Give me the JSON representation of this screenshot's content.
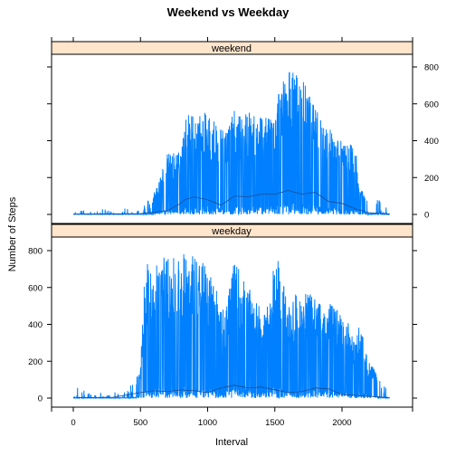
{
  "chart_data": {
    "type": "line",
    "title": "Weekend vs Weekday",
    "xlabel": "Interval",
    "ylabel": "Number of Steps",
    "xlim": [
      0,
      2355
    ],
    "ylim": [
      0,
      806
    ],
    "x_ticks": [
      0,
      500,
      1000,
      1500,
      2000
    ],
    "y_ticks": [
      0,
      200,
      400,
      600,
      800
    ],
    "colors": {
      "series": "#0080ff",
      "strip": "#ffe5cc"
    },
    "panels": [
      {
        "name": "weekend",
        "y_axis_side": "right",
        "series": {
          "peaks": [
            [
              0,
              0
            ],
            [
              30,
              50
            ],
            [
              100,
              10
            ],
            [
              200,
              30
            ],
            [
              300,
              20
            ],
            [
              400,
              45
            ],
            [
              500,
              30
            ],
            [
              530,
              60
            ],
            [
              600,
              120
            ],
            [
              640,
              200
            ],
            [
              700,
              330
            ],
            [
              800,
              350
            ],
            [
              830,
              545
            ],
            [
              900,
              555
            ],
            [
              930,
              545
            ],
            [
              1000,
              555
            ],
            [
              1030,
              540
            ],
            [
              1100,
              480
            ],
            [
              1130,
              460
            ],
            [
              1200,
              565
            ],
            [
              1230,
              540
            ],
            [
              1300,
              560
            ],
            [
              1330,
              545
            ],
            [
              1400,
              555
            ],
            [
              1430,
              520
            ],
            [
              1500,
              605
            ],
            [
              1530,
              700
            ],
            [
              1600,
              785
            ],
            [
              1630,
              790
            ],
            [
              1700,
              740
            ],
            [
              1730,
              705
            ],
            [
              1800,
              575
            ],
            [
              1830,
              560
            ],
            [
              1900,
              470
            ],
            [
              1930,
              455
            ],
            [
              2000,
              400
            ],
            [
              2030,
              380
            ],
            [
              2100,
              380
            ],
            [
              2130,
              150
            ],
            [
              2200,
              100
            ],
            [
              2300,
              75
            ],
            [
              2330,
              110
            ],
            [
              2355,
              30
            ]
          ],
          "mean": [
            [
              0,
              2
            ],
            [
              500,
              5
            ],
            [
              700,
              20
            ],
            [
              800,
              60
            ],
            [
              830,
              80
            ],
            [
              900,
              95
            ],
            [
              1000,
              80
            ],
            [
              1100,
              50
            ],
            [
              1200,
              100
            ],
            [
              1300,
              95
            ],
            [
              1400,
              110
            ],
            [
              1500,
              110
            ],
            [
              1550,
              120
            ],
            [
              1600,
              130
            ],
            [
              1700,
              110
            ],
            [
              1800,
              120
            ],
            [
              1900,
              70
            ],
            [
              2000,
              60
            ],
            [
              2100,
              30
            ],
            [
              2200,
              10
            ],
            [
              2355,
              2
            ]
          ]
        }
      },
      {
        "name": "weekday",
        "y_axis_side": "left",
        "series": {
          "peaks": [
            [
              0,
              0
            ],
            [
              30,
              60
            ],
            [
              100,
              40
            ],
            [
              200,
              30
            ],
            [
              300,
              20
            ],
            [
              330,
              70
            ],
            [
              400,
              40
            ],
            [
              500,
              150
            ],
            [
              530,
              700
            ],
            [
              600,
              790
            ],
            [
              630,
              785
            ],
            [
              700,
              765
            ],
            [
              730,
              770
            ],
            [
              800,
              785
            ],
            [
              830,
              790
            ],
            [
              900,
              790
            ],
            [
              930,
              770
            ],
            [
              1000,
              705
            ],
            [
              1030,
              680
            ],
            [
              1100,
              520
            ],
            [
              1130,
              500
            ],
            [
              1200,
              745
            ],
            [
              1230,
              710
            ],
            [
              1300,
              595
            ],
            [
              1330,
              580
            ],
            [
              1400,
              470
            ],
            [
              1430,
              450
            ],
            [
              1500,
              750
            ],
            [
              1530,
              765
            ],
            [
              1600,
              500
            ],
            [
              1630,
              560
            ],
            [
              1700,
              565
            ],
            [
              1730,
              580
            ],
            [
              1800,
              545
            ],
            [
              1830,
              520
            ],
            [
              1900,
              550
            ],
            [
              1930,
              500
            ],
            [
              2000,
              470
            ],
            [
              2030,
              440
            ],
            [
              2100,
              300
            ],
            [
              2130,
              410
            ],
            [
              2200,
              200
            ],
            [
              2230,
              170
            ],
            [
              2300,
              70
            ],
            [
              2330,
              60
            ],
            [
              2355,
              40
            ]
          ],
          "mean": [
            [
              0,
              2
            ],
            [
              300,
              5
            ],
            [
              500,
              30
            ],
            [
              600,
              40
            ],
            [
              700,
              35
            ],
            [
              800,
              45
            ],
            [
              900,
              40
            ],
            [
              1000,
              30
            ],
            [
              1100,
              55
            ],
            [
              1200,
              70
            ],
            [
              1300,
              55
            ],
            [
              1400,
              60
            ],
            [
              1500,
              45
            ],
            [
              1600,
              30
            ],
            [
              1700,
              35
            ],
            [
              1800,
              55
            ],
            [
              1900,
              50
            ],
            [
              2000,
              20
            ],
            [
              2100,
              15
            ],
            [
              2200,
              10
            ],
            [
              2355,
              2
            ]
          ]
        }
      }
    ]
  }
}
